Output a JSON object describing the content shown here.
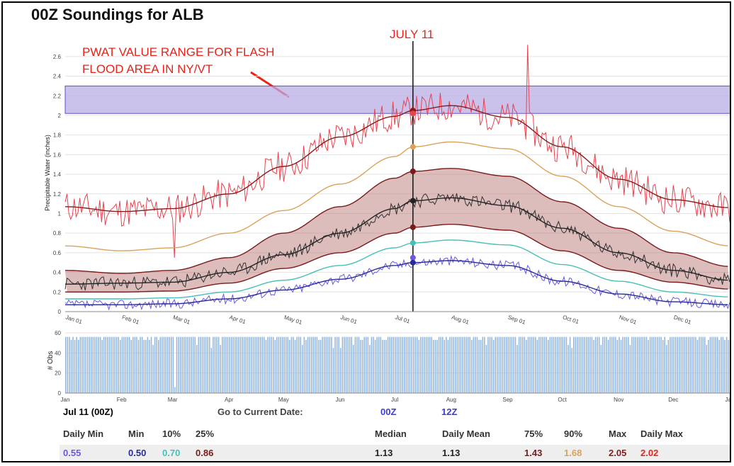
{
  "chart_data": [
    {
      "type": "line",
      "title": "00Z Soundings for ALB",
      "ylabel": "Precipitable Water (inches)",
      "ylim": [
        0,
        2.7
      ],
      "y_ticks": [
        "0",
        "0.2",
        "0.4",
        "0.6",
        "0.8",
        "1",
        "1.2",
        "1.4",
        "1.6",
        "1.8",
        "2",
        "2.2",
        "2.4",
        "2.6"
      ],
      "x_ticks": [
        "Jan 01",
        "Feb 01",
        "Mar 01",
        "Apr 01",
        "May 01",
        "Jun 01",
        "Jul 01",
        "Aug 01",
        "Sep 01",
        "Oct 01",
        "Nov 01",
        "Dec 01"
      ],
      "month_starts": [
        1,
        32,
        60,
        91,
        121,
        152,
        182,
        213,
        244,
        274,
        305,
        335
      ],
      "xlim_days": [
        1,
        366
      ],
      "marker_day": 192,
      "marker_label": "JULY 11",
      "highlight_band": {
        "from": 2.02,
        "to": 2.3,
        "label": "PWAT VALUE RANGE FOR FLASH FLOOD AREA IN NY/VT"
      },
      "series": [
        {
          "name": "Max",
          "color": "#8b1a1a",
          "days": [
            1,
            32,
            60,
            91,
            121,
            152,
            182,
            192,
            213,
            244,
            274,
            305,
            335,
            366
          ],
          "values": [
            1.07,
            1.02,
            1.05,
            1.2,
            1.48,
            1.78,
            1.99,
            2.05,
            2.1,
            1.98,
            1.68,
            1.35,
            1.14,
            1.06
          ]
        },
        {
          "name": "90%",
          "color": "#d9a35a",
          "days": [
            1,
            32,
            60,
            91,
            121,
            152,
            182,
            192,
            213,
            244,
            274,
            305,
            335,
            366
          ],
          "values": [
            0.67,
            0.62,
            0.65,
            0.8,
            1.03,
            1.3,
            1.58,
            1.68,
            1.73,
            1.66,
            1.38,
            1.07,
            0.82,
            0.67
          ]
        },
        {
          "name": "75%",
          "color": "#7a1a1a",
          "days": [
            1,
            32,
            60,
            91,
            121,
            152,
            182,
            192,
            213,
            244,
            274,
            305,
            335,
            366
          ],
          "values": [
            0.42,
            0.39,
            0.42,
            0.55,
            0.8,
            1.07,
            1.36,
            1.43,
            1.46,
            1.38,
            1.12,
            0.85,
            0.6,
            0.46
          ]
        },
        {
          "name": "Median",
          "color": "#222222",
          "days": [
            1,
            32,
            60,
            91,
            121,
            152,
            182,
            192,
            213,
            244,
            274,
            305,
            335,
            366
          ],
          "values": [
            0.28,
            0.29,
            0.3,
            0.4,
            0.58,
            0.8,
            1.05,
            1.13,
            1.16,
            1.08,
            0.85,
            0.6,
            0.42,
            0.32
          ]
        },
        {
          "name": "25%",
          "color": "#7a1a1a",
          "days": [
            1,
            32,
            60,
            91,
            121,
            152,
            182,
            192,
            213,
            244,
            274,
            305,
            335,
            366
          ],
          "values": [
            0.2,
            0.2,
            0.21,
            0.29,
            0.44,
            0.6,
            0.8,
            0.86,
            0.89,
            0.83,
            0.62,
            0.42,
            0.3,
            0.23
          ]
        },
        {
          "name": "10%",
          "color": "#47bfb8",
          "days": [
            1,
            32,
            60,
            91,
            121,
            152,
            182,
            192,
            213,
            244,
            274,
            305,
            335,
            366
          ],
          "values": [
            0.13,
            0.13,
            0.14,
            0.2,
            0.32,
            0.47,
            0.65,
            0.7,
            0.73,
            0.68,
            0.48,
            0.31,
            0.2,
            0.15
          ]
        },
        {
          "name": "Min",
          "color": "#2a2a9a",
          "days": [
            1,
            32,
            60,
            91,
            121,
            152,
            182,
            192,
            213,
            244,
            274,
            305,
            335,
            366
          ],
          "values": [
            0.07,
            0.07,
            0.08,
            0.13,
            0.22,
            0.33,
            0.47,
            0.5,
            0.52,
            0.47,
            0.31,
            0.18,
            0.1,
            0.07
          ]
        }
      ],
      "daily_noise_series": [
        {
          "name": "Daily Max",
          "color": "#e8434f",
          "base": "Max",
          "amplitude": 0.16,
          "seed": 11
        },
        {
          "name": "Daily Mean",
          "color": "#333333",
          "base": "Median",
          "amplitude": 0.07,
          "seed": 23
        },
        {
          "name": "Daily Min",
          "color": "#6a5ae0",
          "base": "Min",
          "amplitude": 0.05,
          "seed": 37
        }
      ],
      "july11_points": {
        "Max": 2.05,
        "Daily Max": 2.02,
        "90%": 1.68,
        "75%": 1.43,
        "Median": 1.13,
        "25%": 0.86,
        "10%": 0.7,
        "Daily Min": 0.55,
        "Min": 0.5
      }
    },
    {
      "type": "bar",
      "ylabel": "# Obs",
      "ylim": [
        0,
        60
      ],
      "y_ticks": [
        "0",
        "20",
        "40",
        "60"
      ],
      "x_ticks": [
        "Jan",
        "Feb",
        "Mar",
        "Apr",
        "May",
        "Jun",
        "Jul",
        "Aug",
        "Sep",
        "Oct",
        "Nov",
        "Dec",
        "Jan"
      ],
      "typical_value": 56,
      "dip_day": 61,
      "dip_value": 6,
      "color": "#8fb4dd"
    }
  ],
  "table": {
    "row1": {
      "date": "Jul 11 (00Z)",
      "goto_label": "Go to Current Date:",
      "link_00z": "00Z",
      "link_12z": "12Z"
    },
    "headers": [
      "Daily Min",
      "Min",
      "10%",
      "25%",
      "Median",
      "Daily Mean",
      "75%",
      "90%",
      "Max",
      "Daily Max"
    ],
    "values": [
      {
        "v": "0.55",
        "color": "#6a5ae0"
      },
      {
        "v": "0.50",
        "color": "#2a2a9a"
      },
      {
        "v": "0.70",
        "color": "#47bfb8"
      },
      {
        "v": "0.86",
        "color": "#7a1a1a"
      },
      {
        "v": "1.13",
        "color": "#222222"
      },
      {
        "v": "1.13",
        "color": "#222222"
      },
      {
        "v": "1.43",
        "color": "#7a1a1a"
      },
      {
        "v": "1.68",
        "color": "#d9a35a"
      },
      {
        "v": "2.05",
        "color": "#8b1a1a"
      },
      {
        "v": "2.02",
        "color": "#e8231a"
      }
    ]
  }
}
